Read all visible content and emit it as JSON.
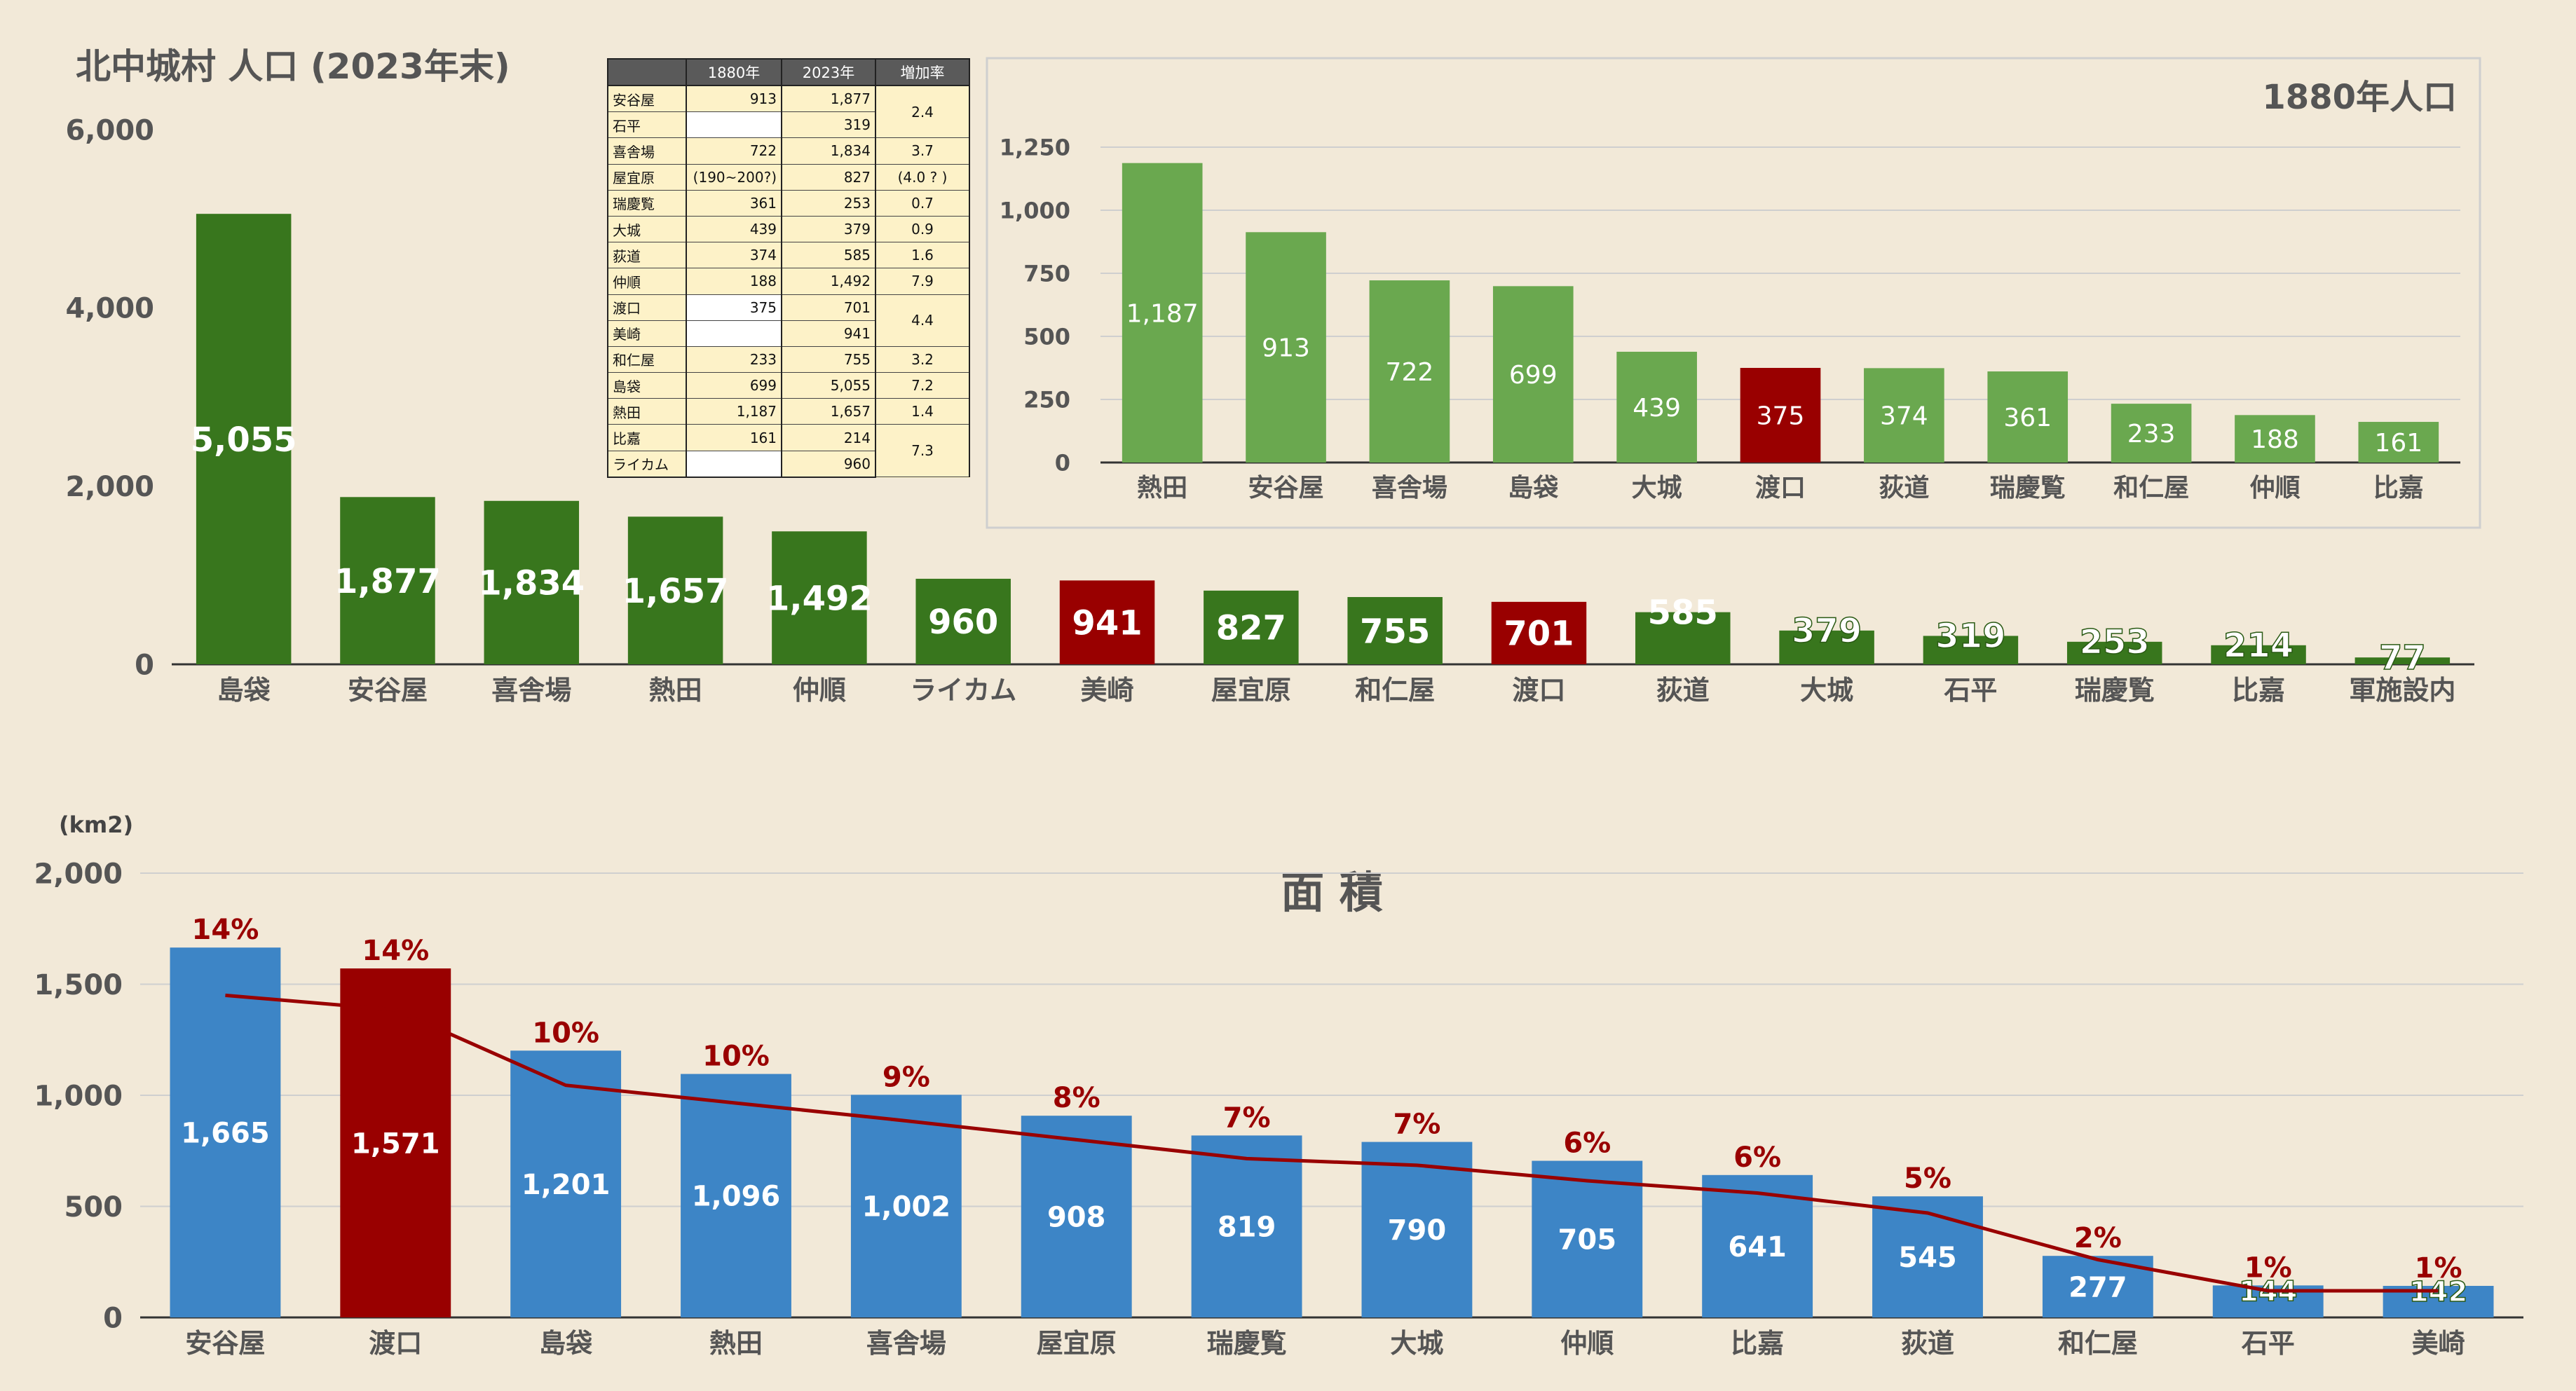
{
  "colors": {
    "background": "#f2e9d8",
    "dark_green": "#38761d",
    "light_green": "#6aa84f",
    "dark_red": "#990000",
    "blue": "#3d85c6",
    "line_red": "#990000"
  },
  "population_table": {
    "headers": [
      "",
      "1880年",
      "2023年",
      "増加率"
    ],
    "rows": [
      {
        "name": "安谷屋",
        "y1880": "913",
        "y2023": "1,877",
        "rate": "2.4",
        "span": 2
      },
      {
        "name": "石平",
        "y1880": "",
        "y2023": "319"
      },
      {
        "name": "喜舎場",
        "y1880": "722",
        "y2023": "1,834",
        "rate": "3.7",
        "span": 1
      },
      {
        "name": "屋宜原",
        "y1880": "(190~200?)",
        "y2023": "827",
        "rate": "(4.0 ? )",
        "span": 1
      },
      {
        "name": "瑞慶覧",
        "y1880": "361",
        "y2023": "253",
        "rate": "0.7",
        "span": 1
      },
      {
        "name": "大城",
        "y1880": "439",
        "y2023": "379",
        "rate": "0.9",
        "span": 1
      },
      {
        "name": "荻道",
        "y1880": "374",
        "y2023": "585",
        "rate": "1.6",
        "span": 1
      },
      {
        "name": "仲順",
        "y1880": "188",
        "y2023": "1,492",
        "rate": "7.9",
        "span": 1
      },
      {
        "name": "渡口",
        "y1880": "375",
        "y2023": "701",
        "rate": "4.4",
        "span": 2
      },
      {
        "name": "美崎",
        "y1880": "",
        "y2023": "941"
      },
      {
        "name": "和仁屋",
        "y1880": "233",
        "y2023": "755",
        "rate": "3.2",
        "span": 1
      },
      {
        "name": "島袋",
        "y1880": "699",
        "y2023": "5,055",
        "rate": "7.2",
        "span": 1
      },
      {
        "name": "熱田",
        "y1880": "1,187",
        "y2023": "1,657",
        "rate": "1.4",
        "span": 1
      },
      {
        "name": "比嘉",
        "y1880": "161",
        "y2023": "214",
        "rate": "7.3",
        "span": 2
      },
      {
        "name": "ライカム",
        "y1880": "",
        "y2023": "960"
      }
    ]
  },
  "chart_data": [
    {
      "id": "pop2023",
      "type": "bar",
      "title": "北中城村 人口 (2023年末)",
      "ylim": [
        0,
        6000
      ],
      "yticks": [
        "0",
        "2,000",
        "4,000",
        "6,000"
      ],
      "categories": [
        "島袋",
        "安谷屋",
        "喜舎場",
        "熱田",
        "仲順",
        "ライカム",
        "美崎",
        "屋宜原",
        "和仁屋",
        "渡口",
        "荻道",
        "大城",
        "石平",
        "瑞慶覧",
        "比嘉",
        "軍施設内"
      ],
      "values": [
        5055,
        1877,
        1834,
        1657,
        1492,
        960,
        941,
        827,
        755,
        701,
        585,
        379,
        319,
        253,
        214,
        77
      ],
      "labels": [
        "5,055",
        "1,877",
        "1,834",
        "1,657",
        "1,492",
        "960",
        "941",
        "827",
        "755",
        "701",
        "585",
        "379",
        "319",
        "253",
        "214",
        "77"
      ],
      "highlight": [
        "美崎",
        "渡口"
      ],
      "grid": false
    },
    {
      "id": "pop1880",
      "type": "bar",
      "title": "1880年人口",
      "ylim": [
        0,
        1250
      ],
      "yticks": [
        "0",
        "250",
        "500",
        "750",
        "1,000",
        "1,250"
      ],
      "categories": [
        "熱田",
        "安谷屋",
        "喜舎場",
        "島袋",
        "大城",
        "渡口",
        "荻道",
        "瑞慶覧",
        "和仁屋",
        "仲順",
        "比嘉"
      ],
      "values": [
        1187,
        913,
        722,
        699,
        439,
        375,
        374,
        361,
        233,
        188,
        161
      ],
      "labels": [
        "1,187",
        "913",
        "722",
        "699",
        "439",
        "375",
        "374",
        "361",
        "233",
        "188",
        "161"
      ],
      "highlight": [
        "渡口"
      ],
      "grid": true
    },
    {
      "id": "area",
      "type": "bar",
      "title": "面 積",
      "unit": "(km2)",
      "ylim": [
        0,
        2000
      ],
      "yticks": [
        "0",
        "500",
        "1,000",
        "1,500",
        "2,000"
      ],
      "categories": [
        "安谷屋",
        "渡口",
        "島袋",
        "熱田",
        "喜舎場",
        "屋宜原",
        "瑞慶覧",
        "大城",
        "仲順",
        "比嘉",
        "荻道",
        "和仁屋",
        "石平",
        "美崎"
      ],
      "values": [
        1665,
        1571,
        1201,
        1096,
        1002,
        908,
        819,
        790,
        705,
        641,
        545,
        277,
        144,
        142
      ],
      "labels": [
        "1,665",
        "1,571",
        "1,201",
        "1,096",
        "1,002",
        "908",
        "819",
        "790",
        "705",
        "641",
        "545",
        "277",
        "144",
        "142"
      ],
      "percent_labels": [
        "14%",
        "14%",
        "10%",
        "10%",
        "9%",
        "8%",
        "7%",
        "7%",
        "6%",
        "6%",
        "5%",
        "2%",
        "1%",
        "1%"
      ],
      "line_values": [
        1450,
        1385,
        1045,
        965,
        885,
        800,
        715,
        685,
        615,
        560,
        470,
        260,
        120,
        120
      ],
      "highlight": [
        "渡口"
      ],
      "grid": true
    }
  ]
}
